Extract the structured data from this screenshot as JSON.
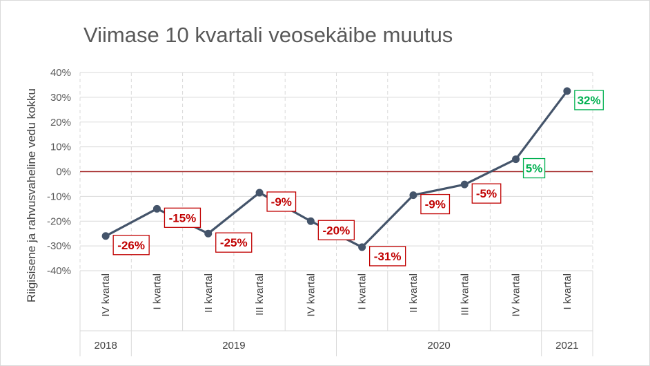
{
  "colors": {
    "line": "#44546a",
    "zero_line": "#a52a2a",
    "negative": "#c00000",
    "positive": "#00b050",
    "grid": "#d9d9d9"
  },
  "chart_data": {
    "type": "line",
    "title": "Viimase 10 kvartali veosekäibe muutus",
    "ylabel": "Riigisisene ja rahvusvaheline vedu kokku",
    "xlabel": "",
    "ylim": [
      -40,
      40
    ],
    "yticks": [
      40,
      30,
      20,
      10,
      0,
      -10,
      -20,
      -30,
      -40
    ],
    "ytick_labels": [
      "40%",
      "30%",
      "20%",
      "10%",
      "0%",
      "-10%",
      "-20%",
      "-30%",
      "-40%"
    ],
    "grid": true,
    "legend": "none",
    "categories": [
      "IV kvartal",
      "I kvartal",
      "II kvartal",
      "III kvartal",
      "IV kvartal",
      "I kvartal",
      "II kvartal",
      "III kvartal",
      "IV kvartal",
      "I kvartal"
    ],
    "years": [
      {
        "label": "2018",
        "span": 1
      },
      {
        "label": "2019",
        "span": 4
      },
      {
        "label": "2020",
        "span": 4
      },
      {
        "label": "2021",
        "span": 1
      }
    ],
    "values": [
      -26,
      -15,
      -25,
      -8.5,
      -20,
      -30.5,
      -9.5,
      -5.2,
      5,
      32.5
    ],
    "data_labels": [
      "-26%",
      "-15%",
      "-25%",
      "-9%",
      "-20%",
      "-31%",
      "-9%",
      "-5%",
      "5%",
      "32%"
    ]
  }
}
